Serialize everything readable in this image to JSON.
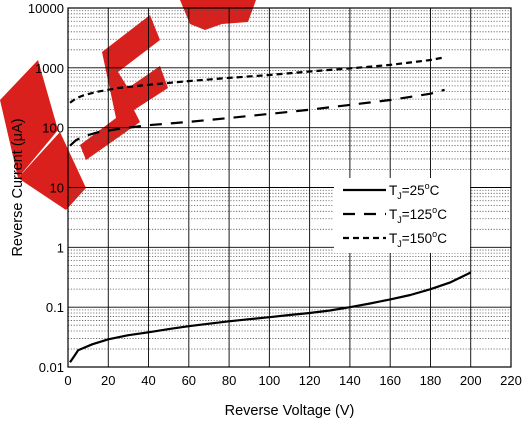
{
  "watermark": "DES",
  "chart_data": {
    "type": "line",
    "xlabel": "Reverse Voltage (V)",
    "ylabel": "Reverse Current (μA)",
    "xlim": [
      0,
      220
    ],
    "ylim": [
      0.01,
      10000
    ],
    "yscale": "log",
    "grid": true,
    "minor_grid": "dotted",
    "legend_position": "center-right",
    "x_ticks": [
      "0",
      "20",
      "40",
      "60",
      "80",
      "100",
      "120",
      "140",
      "160",
      "180",
      "200",
      "220"
    ],
    "y_ticks": [
      "0.01",
      "0.1",
      "1",
      "10",
      "100",
      "1000",
      "10000"
    ],
    "series": [
      {
        "name": "TJ=25°C",
        "label_main": "T",
        "label_sub": "J",
        "label_eq": "=25",
        "label_sup": "o",
        "label_unit": "C",
        "line_style": "solid",
        "x": [
          1,
          3,
          5,
          8,
          12,
          20,
          30,
          40,
          50,
          60,
          70,
          80,
          90,
          100,
          110,
          120,
          130,
          140,
          150,
          160,
          170,
          180,
          190,
          200
        ],
        "y": [
          0.012,
          0.015,
          0.019,
          0.021,
          0.024,
          0.029,
          0.034,
          0.038,
          0.043,
          0.048,
          0.053,
          0.058,
          0.063,
          0.068,
          0.074,
          0.08,
          0.088,
          0.1,
          0.115,
          0.135,
          0.16,
          0.2,
          0.26,
          0.38
        ]
      },
      {
        "name": "TJ=125°C",
        "label_main": "T",
        "label_sub": "J",
        "label_eq": "=125",
        "label_sup": "o",
        "label_unit": "C",
        "line_style": "dashed",
        "x": [
          1,
          4,
          8,
          15,
          25,
          40,
          60,
          80,
          100,
          120,
          140,
          160,
          180,
          187
        ],
        "y": [
          50,
          62,
          72,
          84,
          95,
          110,
          125,
          145,
          170,
          200,
          240,
          290,
          370,
          430
        ]
      },
      {
        "name": "TJ=150°C",
        "label_main": "T",
        "label_sub": "J",
        "label_eq": "=150",
        "label_sup": "o",
        "label_unit": "C",
        "line_style": "short-dashed",
        "x": [
          1,
          4,
          8,
          15,
          25,
          40,
          60,
          80,
          100,
          120,
          140,
          160,
          180,
          187
        ],
        "y": [
          260,
          310,
          350,
          400,
          460,
          520,
          600,
          680,
          760,
          870,
          980,
          1120,
          1350,
          1500
        ]
      }
    ]
  }
}
